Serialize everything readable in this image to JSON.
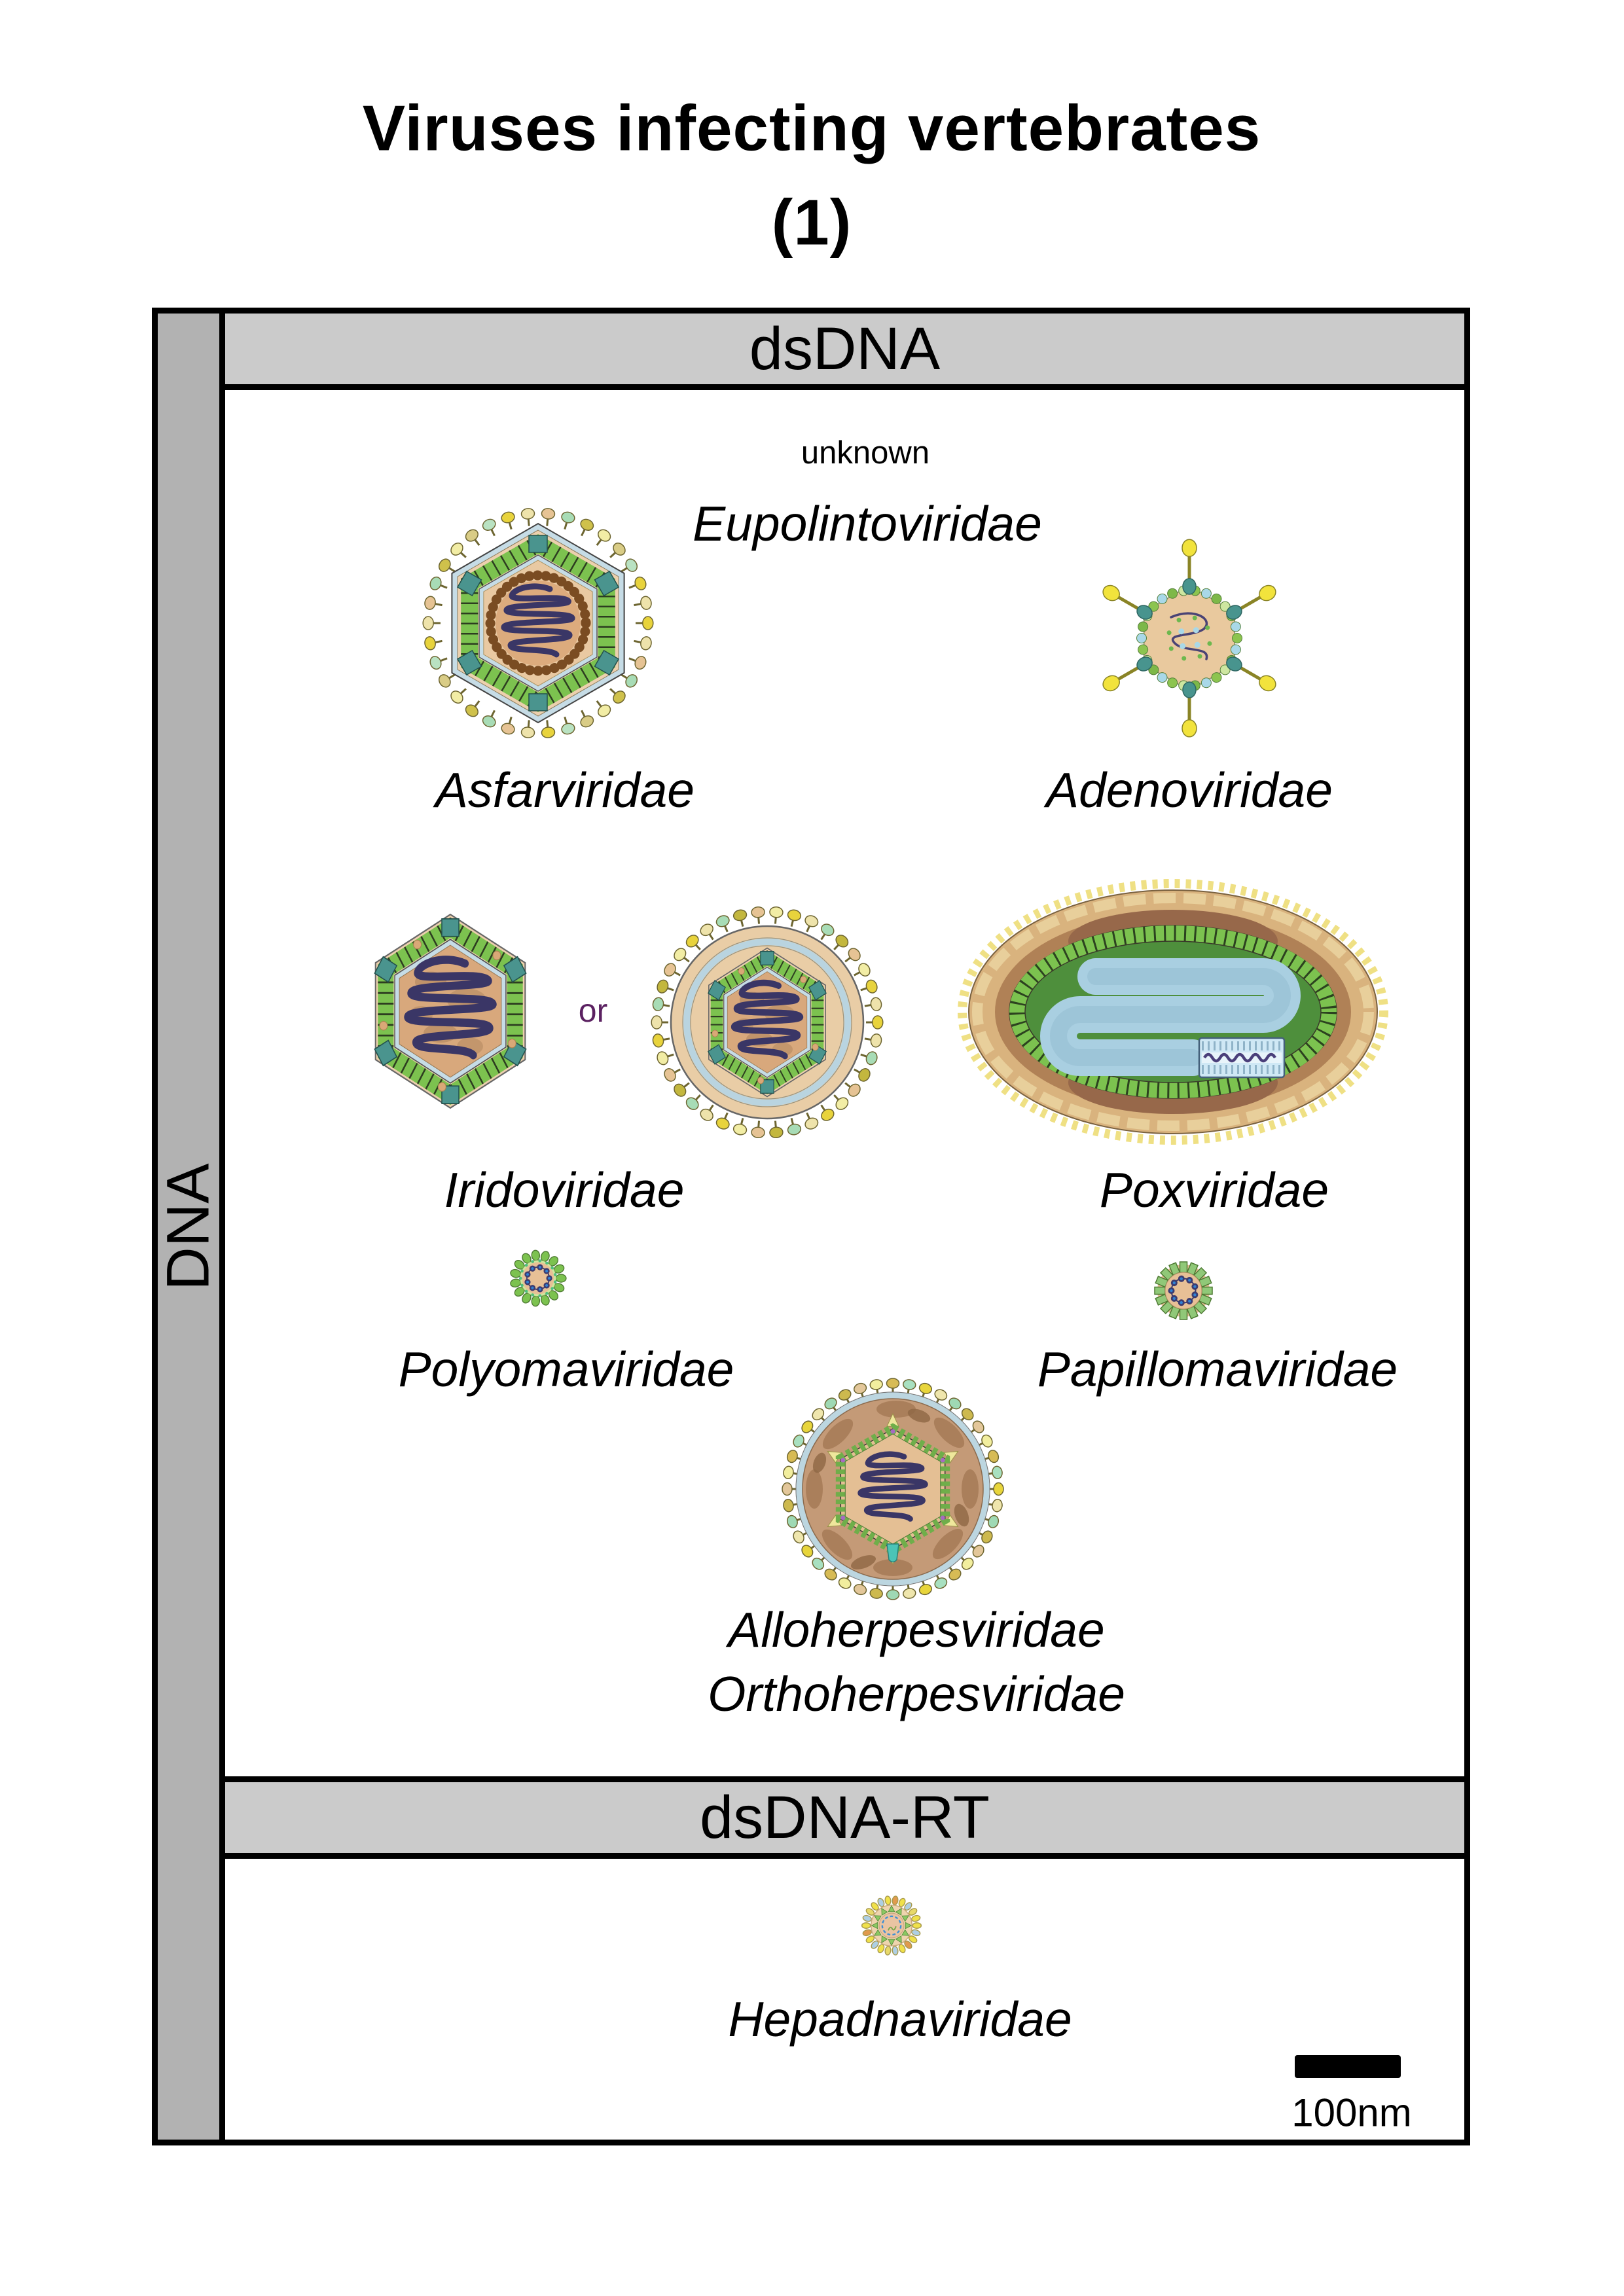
{
  "title": {
    "line1": "Viruses infecting vertebrates",
    "line2": "(1)"
  },
  "axis": {
    "genome_group": "DNA"
  },
  "sections": {
    "dsdna": {
      "header": "dsDNA"
    },
    "dsdna_rt": {
      "header": "dsDNA-RT"
    }
  },
  "labels": {
    "unknown_note": "unknown",
    "eupolintoviridae": "Eupolintoviridae",
    "asfarviridae": "Asfarviridae",
    "adenoviridae": "Adenoviridae",
    "iridoviridae": "Iridoviridae",
    "or_conjunction": "or",
    "poxviridae": "Poxviridae",
    "polyomaviridae": "Polyomaviridae",
    "papillomaviridae": "Papillomaviridae",
    "herpes_line1": "Alloherpesviridae",
    "herpes_line2": "Orthoherpesviridae",
    "hepadnaviridae": "Hepadnaviridae"
  },
  "scale_bar": {
    "label": "100nm"
  },
  "colors": {
    "header_fill": "#cbcbcb",
    "sidebar_fill": "#b2b2b2",
    "border": "#000000",
    "or_text": "#5b2161",
    "capsid_green": "#7cc24f",
    "vertex_teal": "#4a948e",
    "membrane_blue": "#bcd6e0",
    "core_tan": "#e0b88e",
    "spike_yellow": "#e8d53b",
    "dna_coil_navy": "#3a3666",
    "tegument_brown": "#c49a77"
  }
}
